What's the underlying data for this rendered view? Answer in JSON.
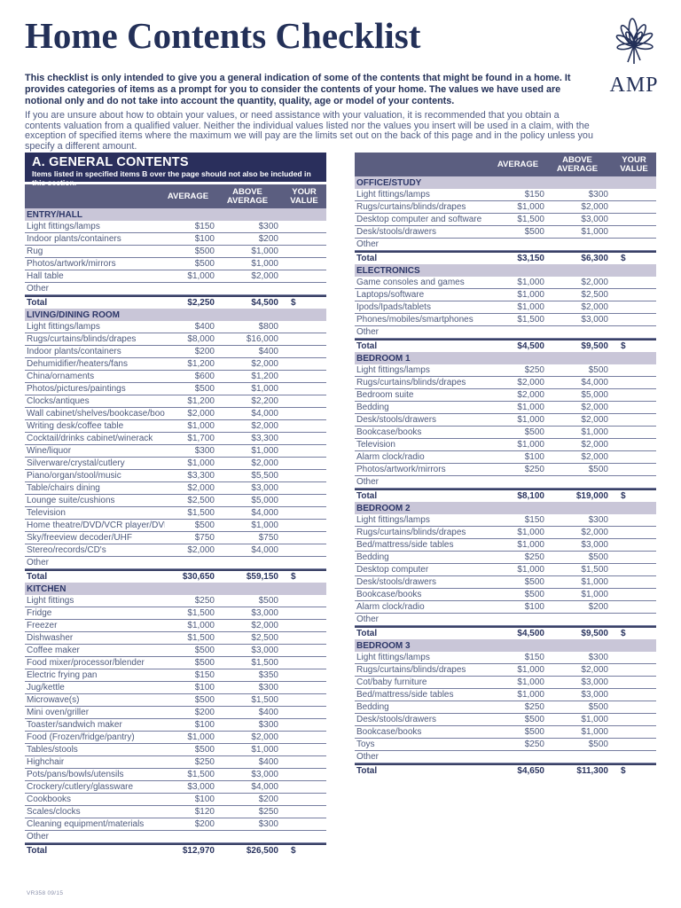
{
  "meta": {
    "title": "Home Contents Checklist",
    "footer_code": "VR358 09/15"
  },
  "logo": {
    "brand": "AMP",
    "icon": "amp-windflower",
    "color": "#233058"
  },
  "intro": {
    "bold": "This checklist is only intended to give you a general indication of some of the contents that might be found in a home. It provides categories of items as a prompt for you to consider the contents of your home. The values we have used are notional only and do not take into account the quantity, quality, age or model of your contents.",
    "regular": "If you are unsure about how to obtain your values, or need assistance with your valuation, it is recommended that you obtain a contents valuation from a qualified valuer. Neither the individual values listed nor the values you insert will be used in a claim, with the exception of specified items where the maximum we will pay are the limits set out on the back of this page and in the policy unless you specify a different amount."
  },
  "general_contents": {
    "title": "A. GENERAL CONTENTS",
    "subtitle": "Items listed in specified items B over the page should not also be included in this section."
  },
  "columns": {
    "average": "AVERAGE",
    "above_average": "ABOVE AVERAGE",
    "your_value": "YOUR VALUE"
  },
  "labels": {
    "other": "Other",
    "total": "Total",
    "dollar": "$"
  },
  "colors": {
    "navy": "#2a2f5c",
    "header_slate": "#5b5e80",
    "section_band": "#c9c6d8",
    "row_text": "#4e5a7d"
  },
  "left_sections": [
    {
      "name": "ENTRY/HALL",
      "rows": [
        {
          "label": "Light fittings/lamps",
          "average": "$150",
          "above": "$300"
        },
        {
          "label": "Indoor plants/containers",
          "average": "$100",
          "above": "$200"
        },
        {
          "label": "Rug",
          "average": "$500",
          "above": "$1,000"
        },
        {
          "label": "Photos/artwork/mirrors",
          "average": "$500",
          "above": "$1,000"
        },
        {
          "label": "Hall table",
          "average": "$1,000",
          "above": "$2,000"
        },
        {
          "label": "Other",
          "average": "",
          "above": ""
        }
      ],
      "total": {
        "average": "$2,250",
        "above": "$4,500"
      }
    },
    {
      "name": "LIVING/DINING ROOM",
      "rows": [
        {
          "label": "Light fittings/lamps",
          "average": "$400",
          "above": "$800"
        },
        {
          "label": "Rugs/curtains/blinds/drapes",
          "average": "$8,000",
          "above": "$16,000"
        },
        {
          "label": "Indoor plants/containers",
          "average": "$200",
          "above": "$400"
        },
        {
          "label": "Dehumidifier/heaters/fans",
          "average": "$1,200",
          "above": "$2,000"
        },
        {
          "label": "China/ornaments",
          "average": "$600",
          "above": "$1,200"
        },
        {
          "label": "Photos/pictures/paintings",
          "average": "$500",
          "above": "$1,000"
        },
        {
          "label": "Clocks/antiques",
          "average": "$1,200",
          "above": "$2,200"
        },
        {
          "label": "Wall cabinet/shelves/bookcase/books",
          "average": "$2,000",
          "above": "$4,000"
        },
        {
          "label": "Writing desk/coffee table",
          "average": "$1,000",
          "above": "$2,000"
        },
        {
          "label": "Cocktail/drinks cabinet/winerack",
          "average": "$1,700",
          "above": "$3,300"
        },
        {
          "label": "Wine/liquor",
          "average": "$300",
          "above": "$1,000"
        },
        {
          "label": "Silverware/crystal/cutlery",
          "average": "$1,000",
          "above": "$2,000"
        },
        {
          "label": "Piano/organ/stool/music",
          "average": "$3,300",
          "above": "$5,500"
        },
        {
          "label": "Table/chairs dining",
          "average": "$2,000",
          "above": "$3,000"
        },
        {
          "label": "Lounge suite/cushions",
          "average": "$2,500",
          "above": "$5,000"
        },
        {
          "label": "Television",
          "average": "$1,500",
          "above": "$4,000"
        },
        {
          "label": "Home theatre/DVD/VCR player/DVD's",
          "average": "$500",
          "above": "$1,000"
        },
        {
          "label": "Sky/freeview decoder/UHF",
          "average": "$750",
          "above": "$750"
        },
        {
          "label": "Stereo/records/CD's",
          "average": "$2,000",
          "above": "$4,000"
        },
        {
          "label": "Other",
          "average": "",
          "above": ""
        }
      ],
      "total": {
        "average": "$30,650",
        "above": "$59,150"
      }
    },
    {
      "name": "KITCHEN",
      "rows": [
        {
          "label": "Light fittings",
          "average": "$250",
          "above": "$500"
        },
        {
          "label": "Fridge",
          "average": "$1,500",
          "above": "$3,000"
        },
        {
          "label": "Freezer",
          "average": "$1,000",
          "above": "$2,000"
        },
        {
          "label": "Dishwasher",
          "average": "$1,500",
          "above": "$2,500"
        },
        {
          "label": "Coffee maker",
          "average": "$500",
          "above": "$3,000"
        },
        {
          "label": "Food mixer/processor/blender",
          "average": "$500",
          "above": "$1,500"
        },
        {
          "label": "Electric frying pan",
          "average": "$150",
          "above": "$350"
        },
        {
          "label": "Jug/kettle",
          "average": "$100",
          "above": "$300"
        },
        {
          "label": "Microwave(s)",
          "average": "$500",
          "above": "$1,500"
        },
        {
          "label": "Mini oven/griller",
          "average": "$200",
          "above": "$400"
        },
        {
          "label": "Toaster/sandwich maker",
          "average": "$100",
          "above": "$300"
        },
        {
          "label": "Food (Frozen/fridge/pantry)",
          "average": "$1,000",
          "above": "$2,000"
        },
        {
          "label": "Tables/stools",
          "average": "$500",
          "above": "$1,000"
        },
        {
          "label": "Highchair",
          "average": "$250",
          "above": "$400"
        },
        {
          "label": "Pots/pans/bowls/utensils",
          "average": "$1,500",
          "above": "$3,000"
        },
        {
          "label": "Crockery/cutlery/glassware",
          "average": "$3,000",
          "above": "$4,000"
        },
        {
          "label": "Cookbooks",
          "average": "$100",
          "above": "$200"
        },
        {
          "label": "Scales/clocks",
          "average": "$120",
          "above": "$250"
        },
        {
          "label": "Cleaning equipment/materials",
          "average": "$200",
          "above": "$300"
        },
        {
          "label": "Other",
          "average": "",
          "above": ""
        }
      ],
      "total": {
        "average": "$12,970",
        "above": "$26,500"
      }
    }
  ],
  "right_sections": [
    {
      "name": "OFFICE/STUDY",
      "rows": [
        {
          "label": "Light fittings/lamps",
          "average": "$150",
          "above": "$300"
        },
        {
          "label": "Rugs/curtains/blinds/drapes",
          "average": "$1,000",
          "above": "$2,000"
        },
        {
          "label": "Desktop computer and software",
          "average": "$1,500",
          "above": "$3,000"
        },
        {
          "label": "Desk/stools/drawers",
          "average": "$500",
          "above": "$1,000"
        },
        {
          "label": "Other",
          "average": "",
          "above": ""
        }
      ],
      "total": {
        "average": "$3,150",
        "above": "$6,300"
      }
    },
    {
      "name": "ELECTRONICS",
      "rows": [
        {
          "label": "Game consoles and games",
          "average": "$1,000",
          "above": "$2,000"
        },
        {
          "label": "Laptops/software",
          "average": "$1,000",
          "above": "$2,500"
        },
        {
          "label": "Ipods/Ipads/tablets",
          "average": "$1,000",
          "above": "$2,000"
        },
        {
          "label": "Phones/mobiles/smartphones",
          "average": "$1,500",
          "above": "$3,000"
        },
        {
          "label": "Other",
          "average": "",
          "above": ""
        }
      ],
      "total": {
        "average": "$4,500",
        "above": "$9,500"
      }
    },
    {
      "name": "BEDROOM 1",
      "rows": [
        {
          "label": "Light fittings/lamps",
          "average": "$250",
          "above": "$500"
        },
        {
          "label": "Rugs/curtains/blinds/drapes",
          "average": "$2,000",
          "above": "$4,000"
        },
        {
          "label": "Bedroom suite",
          "average": "$2,000",
          "above": "$5,000"
        },
        {
          "label": "Bedding",
          "average": "$1,000",
          "above": "$2,000"
        },
        {
          "label": "Desk/stools/drawers",
          "average": "$1,000",
          "above": "$2,000"
        },
        {
          "label": "Bookcase/books",
          "average": "$500",
          "above": "$1,000"
        },
        {
          "label": "Television",
          "average": "$1,000",
          "above": "$2,000"
        },
        {
          "label": "Alarm clock/radio",
          "average": "$100",
          "above": "$2,000"
        },
        {
          "label": "Photos/artwork/mirrors",
          "average": "$250",
          "above": "$500"
        },
        {
          "label": "Other",
          "average": "",
          "above": ""
        }
      ],
      "total": {
        "average": "$8,100",
        "above": "$19,000"
      }
    },
    {
      "name": "BEDROOM 2",
      "rows": [
        {
          "label": "Light fittings/lamps",
          "average": "$150",
          "above": "$300"
        },
        {
          "label": "Rugs/curtains/blinds/drapes",
          "average": "$1,000",
          "above": "$2,000"
        },
        {
          "label": "Bed/mattress/side tables",
          "average": "$1,000",
          "above": "$3,000"
        },
        {
          "label": "Bedding",
          "average": "$250",
          "above": "$500"
        },
        {
          "label": "Desktop computer",
          "average": "$1,000",
          "above": "$1,500"
        },
        {
          "label": "Desk/stools/drawers",
          "average": "$500",
          "above": "$1,000"
        },
        {
          "label": "Bookcase/books",
          "average": "$500",
          "above": "$1,000"
        },
        {
          "label": "Alarm clock/radio",
          "average": "$100",
          "above": "$200"
        },
        {
          "label": "Other",
          "average": "",
          "above": ""
        }
      ],
      "total": {
        "average": "$4,500",
        "above": "$9,500"
      }
    },
    {
      "name": "BEDROOM 3",
      "rows": [
        {
          "label": "Light fittings/lamps",
          "average": "$150",
          "above": "$300"
        },
        {
          "label": "Rugs/curtains/blinds/drapes",
          "average": "$1,000",
          "above": "$2,000"
        },
        {
          "label": "Cot/baby furniture",
          "average": "$1,000",
          "above": "$3,000"
        },
        {
          "label": "Bed/mattress/side tables",
          "average": "$1,000",
          "above": "$3,000"
        },
        {
          "label": "Bedding",
          "average": "$250",
          "above": "$500"
        },
        {
          "label": "Desk/stools/drawers",
          "average": "$500",
          "above": "$1,000"
        },
        {
          "label": "Bookcase/books",
          "average": "$500",
          "above": "$1,000"
        },
        {
          "label": "Toys",
          "average": "$250",
          "above": "$500"
        },
        {
          "label": "Other",
          "average": "",
          "above": ""
        }
      ],
      "total": {
        "average": "$4,650",
        "above": "$11,300"
      }
    }
  ]
}
